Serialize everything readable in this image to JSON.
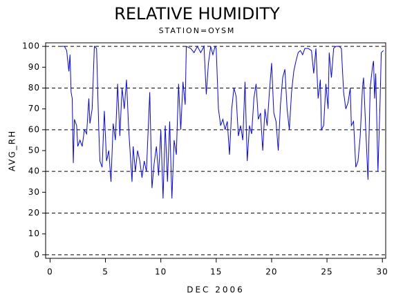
{
  "chart_data": {
    "type": "line",
    "title": "RELATIVE HUMIDITY",
    "subtitle": "STATION=OYSM",
    "x_label": "DEC 2006",
    "y_label": "AVG_RH",
    "xlim": [
      -0.4,
      30.3
    ],
    "xticks": [
      0,
      5,
      10,
      15,
      20,
      25,
      30
    ],
    "ylim": [
      -1.7,
      101.7
    ],
    "yticks": [
      0,
      10,
      20,
      30,
      40,
      50,
      60,
      70,
      80,
      90,
      100
    ],
    "grid_lines": [
      0,
      20,
      40,
      60,
      80,
      100
    ],
    "grid_color": "#000000",
    "series": [
      {
        "name": "AVG_RH",
        "color": "#0000ff",
        "x": [
          1.0,
          1.3,
          1.5,
          1.7,
          1.8,
          1.9,
          2.0,
          2.1,
          2.2,
          2.4,
          2.5,
          2.7,
          2.9,
          3.1,
          3.3,
          3.5,
          3.6,
          3.8,
          4.0,
          4.2,
          4.4,
          4.5,
          4.7,
          4.9,
          5.1,
          5.3,
          5.5,
          5.7,
          5.9,
          6.1,
          6.3,
          6.5,
          6.7,
          6.9,
          7.1,
          7.4,
          7.5,
          7.7,
          7.9,
          8.1,
          8.3,
          8.5,
          8.7,
          9.0,
          9.2,
          9.4,
          9.6,
          9.8,
          10.0,
          10.2,
          10.4,
          10.6,
          10.8,
          11.0,
          11.2,
          11.4,
          11.6,
          11.8,
          12.0,
          12.2,
          12.3,
          12.7,
          13.0,
          13.3,
          13.6,
          13.9,
          14.1,
          14.3,
          14.5,
          14.7,
          14.9,
          15.0,
          15.2,
          15.4,
          15.6,
          15.8,
          16.0,
          16.2,
          16.4,
          16.6,
          16.8,
          17.0,
          17.2,
          17.4,
          17.6,
          17.8,
          18.0,
          18.2,
          18.4,
          18.6,
          18.8,
          19.0,
          19.2,
          19.4,
          19.6,
          19.8,
          20.0,
          20.2,
          20.4,
          20.6,
          20.8,
          21.0,
          21.2,
          21.4,
          21.6,
          21.8,
          22.0,
          22.2,
          22.4,
          22.6,
          22.8,
          23.0,
          23.3,
          23.6,
          23.8,
          24.0,
          24.2,
          24.4,
          24.5,
          24.7,
          24.9,
          25.1,
          25.2,
          25.4,
          25.6,
          25.8,
          26.1,
          26.3,
          26.5,
          26.7,
          26.9,
          27.1,
          27.2,
          27.4,
          27.6,
          27.8,
          28.0,
          28.2,
          28.3,
          28.5,
          28.7,
          28.9,
          29.1,
          29.2,
          29.3,
          29.4,
          29.6,
          29.8,
          29.9,
          30.1
        ],
        "values": [
          100,
          100,
          98,
          88,
          96,
          78,
          75,
          44,
          65,
          62,
          52,
          55,
          52,
          60,
          58,
          75,
          63,
          70,
          100,
          99,
          60,
          45,
          42,
          69,
          45,
          50,
          35,
          63,
          55,
          82,
          57,
          80,
          70,
          84,
          60,
          35,
          52,
          40,
          50,
          45,
          37,
          45,
          40,
          78,
          32,
          44,
          52,
          38,
          60,
          27,
          62,
          35,
          64,
          27,
          55,
          48,
          82,
          60,
          83,
          72,
          100,
          99,
          97,
          100,
          97,
          100,
          77,
          92,
          100,
          96,
          100,
          99,
          70,
          62,
          65,
          60,
          64,
          48,
          70,
          80,
          76,
          57,
          62,
          55,
          83,
          45,
          62,
          58,
          75,
          82,
          65,
          68,
          50,
          70,
          62,
          78,
          92,
          68,
          64,
          50,
          72,
          85,
          89,
          70,
          60,
          78,
          88,
          93,
          97,
          98,
          96,
          99,
          99,
          98,
          87,
          99,
          75,
          84,
          60,
          62,
          82,
          70,
          97,
          85,
          99,
          100,
          100,
          99,
          78,
          70,
          73,
          80,
          62,
          64,
          42,
          45,
          57,
          80,
          85,
          60,
          36,
          80,
          90,
          93,
          75,
          87,
          40,
          75,
          97,
          98
        ]
      }
    ]
  }
}
